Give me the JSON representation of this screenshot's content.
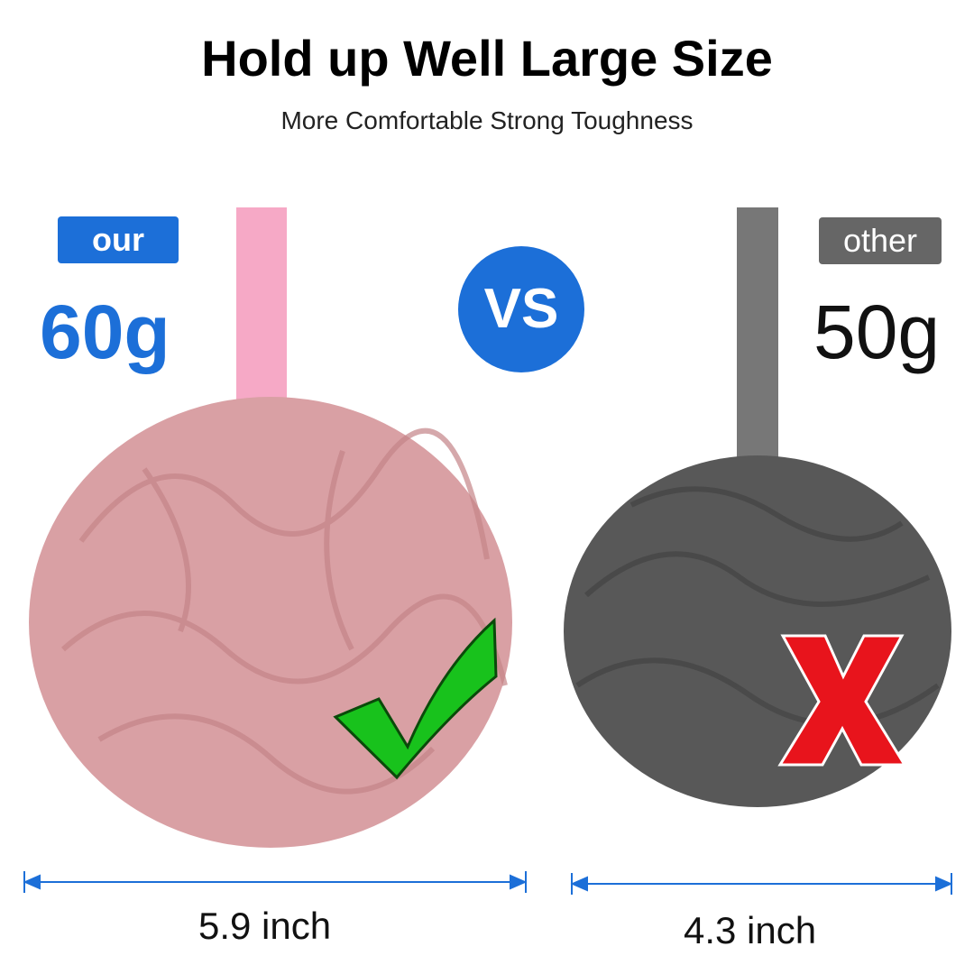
{
  "title": "Hold up Well Large Size",
  "subtitle": "More Comfortable Strong Toughness",
  "left": {
    "badge": "our",
    "weight": "60g",
    "size": "5.9 inch",
    "mark": "check-icon"
  },
  "right": {
    "badge": "other",
    "weight": "50g",
    "size": "4.3 inch",
    "mark": "x-icon"
  },
  "vs": "VS",
  "colors": {
    "accent": "#1c6fd8",
    "pink": "#d9a0a4",
    "gray": "#555555",
    "green": "#18c21c",
    "red": "#e8141c"
  }
}
